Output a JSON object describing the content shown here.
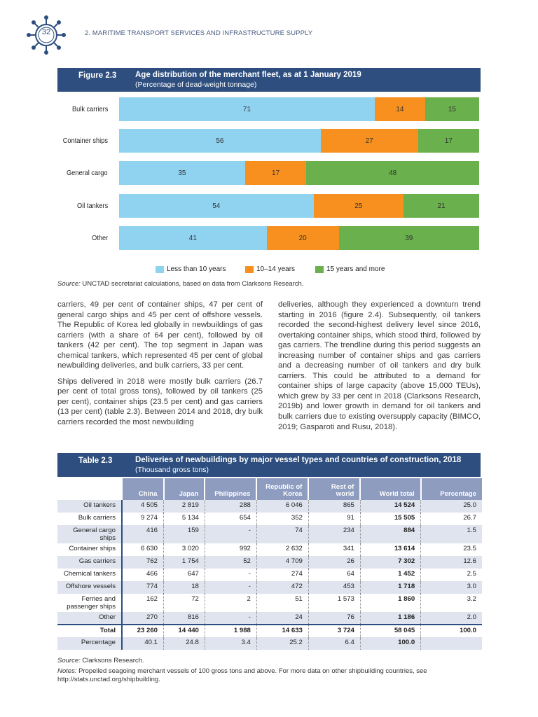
{
  "page": {
    "number": "32",
    "running_head": "2. MARITIME TRANSPORT SERVICES AND INFRASTRUCTURE SUPPLY"
  },
  "figure": {
    "label": "Figure 2.3",
    "title": "Age distribution of the merchant fleet, as at 1 January 2019",
    "subtitle": "(Percentage of dead-weight tonnage)",
    "source_label": "Source:",
    "source_text": " UNCTAD secretariat calculations, based on data from Clarksons Research."
  },
  "chart_data": {
    "type": "bar",
    "orientation": "horizontal",
    "stacked": true,
    "xlim": [
      0,
      100
    ],
    "categories": [
      "Bulk carriers",
      "Container ships",
      "General cargo",
      "Oil tankers",
      "Other"
    ],
    "series": [
      {
        "name": "Less than 10 years",
        "color": "#8fd3f0",
        "values": [
          71,
          56,
          35,
          54,
          41
        ]
      },
      {
        "name": "10–14 years",
        "color": "#f7901e",
        "values": [
          14,
          27,
          17,
          25,
          20
        ]
      },
      {
        "name": "15 years and more",
        "color": "#6ab04c",
        "values": [
          15,
          17,
          48,
          21,
          39
        ]
      }
    ],
    "legend": "bottom",
    "grid": false
  },
  "body": {
    "left": [
      "carriers, 49 per cent of container ships, 47 per cent of general cargo ships and 45 per cent of offshore vessels. The Republic of Korea led globally in newbuildings of gas carriers (with a share of 64 per cent), followed by oil tankers (42 per cent). The top segment in Japan was chemical tankers, which represented 45 per cent of global newbuilding deliveries, and bulk carriers, 33 per cent.",
      "Ships delivered in 2018 were mostly bulk carriers (26.7 per cent of total gross tons), followed by oil tankers (25 per cent), container ships (23.5 per cent) and gas carriers (13 per cent) (table 2.3). Between 2014 and 2018, dry bulk carriers recorded the most newbuilding"
    ],
    "right": [
      "deliveries, although they experienced a downturn trend starting in 2016 (figure 2.4). Subsequently, oil tankers recorded the second-highest delivery level since 2016, overtaking container ships, which stood third, followed by gas carriers. The trendline during this period suggests an increasing number of container ships and gas carriers and a decreasing number of oil tankers and dry bulk carriers. This could be attributed to a demand for container ships of large capacity (above 15,000 TEUs), which grew by 33 per cent in 2018 (Clarksons Research, 2019b) and lower growth in demand for oil tankers and bulk carriers due to existing oversupply capacity (BIMCO, 2019; Gasparoti and Rusu, 2018)."
    ]
  },
  "table": {
    "label": "Table 2.3",
    "title": "Deliveries of newbuildings by major vessel types and countries of construction, 2018",
    "subtitle": "(Thousand gross tons)",
    "columns": [
      "China",
      "Japan",
      "Philippines",
      "Republic of Korea",
      "Rest of world",
      "World total",
      "Percentage"
    ],
    "rows": [
      [
        "Oil tankers",
        "4 505",
        "2 819",
        "288",
        "6 046",
        "865",
        "14 524",
        "25.0"
      ],
      [
        "Bulk carriers",
        "9 274",
        "5 134",
        "654",
        "352",
        "91",
        "15 505",
        "26.7"
      ],
      [
        "General cargo ships",
        "416",
        "159",
        "-",
        "74",
        "234",
        "884",
        "1.5"
      ],
      [
        "Container ships",
        "6 630",
        "3 020",
        "992",
        "2 632",
        "341",
        "13 614",
        "23.5"
      ],
      [
        "Gas carriers",
        "762",
        "1 754",
        "52",
        "4 709",
        "26",
        "7 302",
        "12.6"
      ],
      [
        "Chemical tankers",
        "466",
        "647",
        "-",
        "274",
        "64",
        "1 452",
        "2.5"
      ],
      [
        "Offshore vessels",
        "774",
        "18",
        "-",
        "472",
        "453",
        "1 718",
        "3.0"
      ],
      [
        "Ferries and passenger ships",
        "162",
        "72",
        "2",
        "51",
        "1 573",
        "1 860",
        "3.2"
      ],
      [
        "Other",
        "270",
        "816",
        "-",
        "24",
        "76",
        "1 186",
        "2.0"
      ]
    ],
    "total": [
      "Total",
      "23 260",
      "14 440",
      "1 988",
      "14 633",
      "3 724",
      "58 045",
      "100.0"
    ],
    "percentage": [
      "Percentage",
      "40.1",
      "24.8",
      "3.4",
      "25.2",
      "6.4",
      "100.0",
      ""
    ],
    "source_label": "Source:",
    "source_text": " Clarksons Research.",
    "notes_label": "Notes:",
    "notes_text": " Propelled seagoing merchant vessels of 100 gross tons and above. For more data on other shipbuilding countries, see http://stats.unctad.org/shipbuilding."
  }
}
